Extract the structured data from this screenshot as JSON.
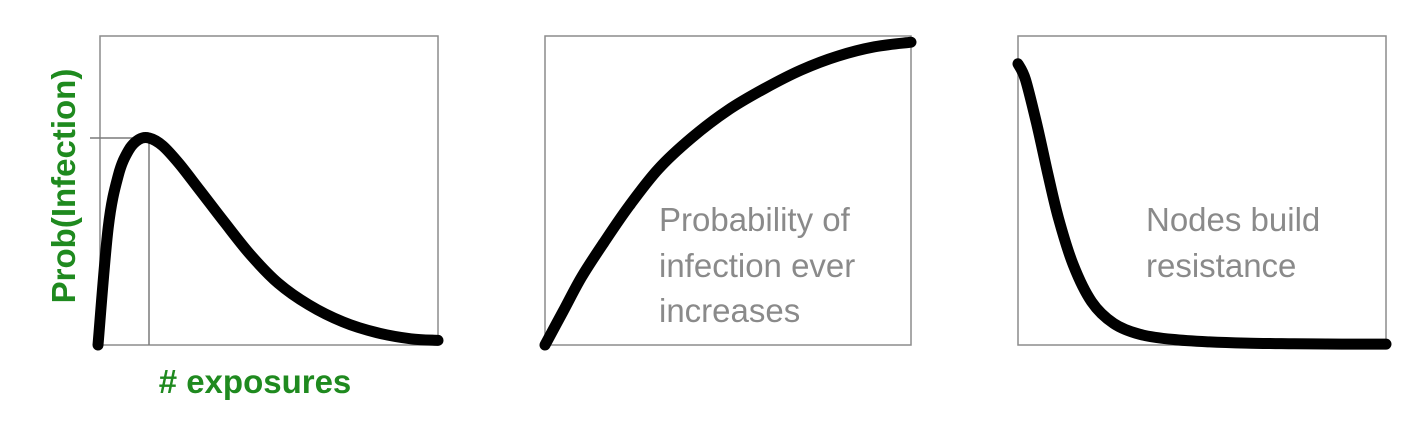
{
  "colors": {
    "curve": "#000000",
    "frame": "#8c8c8c",
    "axis_label": "#1f8a1f",
    "annotation": "#8a8a8a",
    "guide": "#7a7a7a"
  },
  "chart_data": [
    {
      "type": "line",
      "title": "",
      "xlabel": "# exposures",
      "ylabel": "Prob(Infection)",
      "xlim": [
        0,
        1
      ],
      "ylim": [
        0,
        1
      ],
      "grid": false,
      "annotation_lines": [],
      "peak_marker": {
        "x": 0.15,
        "y": 0.67
      },
      "series": [
        {
          "x": [
            0.0,
            0.03,
            0.06,
            0.09,
            0.12,
            0.15,
            0.19,
            0.24,
            0.3,
            0.37,
            0.45,
            0.53,
            0.62,
            0.72,
            0.82,
            0.92,
            1.0
          ],
          "y": [
            0.0,
            0.38,
            0.55,
            0.63,
            0.665,
            0.67,
            0.645,
            0.585,
            0.5,
            0.4,
            0.29,
            0.2,
            0.13,
            0.075,
            0.04,
            0.02,
            0.015
          ]
        }
      ]
    },
    {
      "type": "line",
      "title": "",
      "xlabel": "",
      "ylabel": "",
      "xlim": [
        0,
        1
      ],
      "ylim": [
        0,
        1
      ],
      "grid": false,
      "annotation_lines": [
        "Probability of",
        "infection ever",
        "increases"
      ],
      "series": [
        {
          "x": [
            0.0,
            0.05,
            0.1,
            0.16,
            0.23,
            0.31,
            0.4,
            0.5,
            0.6,
            0.7,
            0.8,
            0.9,
            1.0
          ],
          "y": [
            0.0,
            0.11,
            0.22,
            0.33,
            0.45,
            0.57,
            0.67,
            0.76,
            0.83,
            0.89,
            0.935,
            0.965,
            0.98
          ]
        }
      ]
    },
    {
      "type": "line",
      "title": "",
      "xlabel": "",
      "ylabel": "",
      "xlim": [
        0,
        1
      ],
      "ylim": [
        0,
        1
      ],
      "grid": false,
      "annotation_lines": [
        "Nodes build",
        "resistance"
      ],
      "series": [
        {
          "x": [
            0.0,
            0.02,
            0.05,
            0.08,
            0.11,
            0.15,
            0.2,
            0.26,
            0.33,
            0.42,
            0.52,
            0.62,
            0.75,
            0.88,
            1.0
          ],
          "y": [
            0.91,
            0.86,
            0.72,
            0.56,
            0.41,
            0.26,
            0.14,
            0.07,
            0.035,
            0.018,
            0.01,
            0.006,
            0.004,
            0.003,
            0.003
          ]
        }
      ]
    }
  ]
}
